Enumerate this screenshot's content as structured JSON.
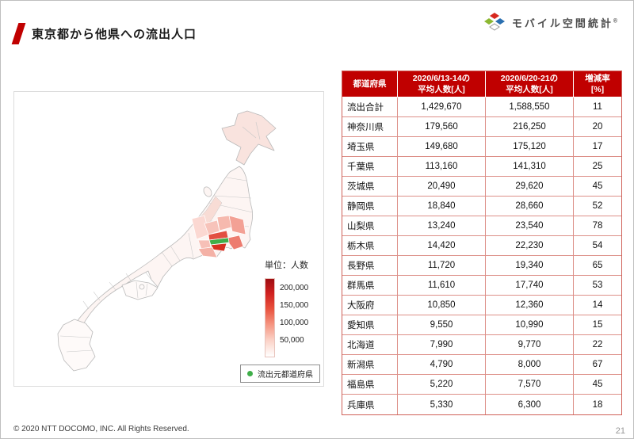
{
  "slide": {
    "title": "東京都から他県への流出人口",
    "footer": "© 2020 NTT DOCOMO, INC. All Rights Reserved.",
    "page_number": "21"
  },
  "logo": {
    "text": "モバイル空間統計",
    "registered": "®"
  },
  "map": {
    "legend_title": "単位：人数",
    "legend_ticks": [
      "200,000",
      "150,000",
      "100,000",
      "50,000"
    ],
    "source_legend_label": "流出元都道府県",
    "source_color": "#3fae49"
  },
  "table": {
    "headers": [
      "都道府県",
      "2020/6/13-14の\n平均人数[人]",
      "2020/6/20-21の\n平均人数[人]",
      "増減率\n[%]"
    ],
    "rows": [
      [
        "流出合計",
        "1,429,670",
        "1,588,550",
        "11"
      ],
      [
        "神奈川県",
        "179,560",
        "216,250",
        "20"
      ],
      [
        "埼玉県",
        "149,680",
        "175,120",
        "17"
      ],
      [
        "千葉県",
        "113,160",
        "141,310",
        "25"
      ],
      [
        "茨城県",
        "20,490",
        "29,620",
        "45"
      ],
      [
        "静岡県",
        "18,840",
        "28,660",
        "52"
      ],
      [
        "山梨県",
        "13,240",
        "23,540",
        "78"
      ],
      [
        "栃木県",
        "14,420",
        "22,230",
        "54"
      ],
      [
        "長野県",
        "11,720",
        "19,340",
        "65"
      ],
      [
        "群馬県",
        "11,610",
        "17,740",
        "53"
      ],
      [
        "大阪府",
        "10,850",
        "12,360",
        "14"
      ],
      [
        "愛知県",
        "9,550",
        "10,990",
        "15"
      ],
      [
        "北海道",
        "7,990",
        "9,770",
        "22"
      ],
      [
        "新潟県",
        "4,790",
        "8,000",
        "67"
      ],
      [
        "福島県",
        "5,220",
        "7,570",
        "45"
      ],
      [
        "兵庫県",
        "5,330",
        "6,300",
        "18"
      ]
    ]
  },
  "chart_data": {
    "type": "table",
    "title": "東京都から他県への流出人口",
    "columns": [
      "都道府県",
      "2020/6/13-14の平均人数[人]",
      "2020/6/20-21の平均人数[人]",
      "増減率[%]"
    ],
    "rows": [
      [
        "流出合計",
        1429670,
        1588550,
        11
      ],
      [
        "神奈川県",
        179560,
        216250,
        20
      ],
      [
        "埼玉県",
        149680,
        175120,
        17
      ],
      [
        "千葉県",
        113160,
        141310,
        25
      ],
      [
        "茨城県",
        20490,
        29620,
        45
      ],
      [
        "静岡県",
        18840,
        28660,
        52
      ],
      [
        "山梨県",
        13240,
        23540,
        78
      ],
      [
        "栃木県",
        14420,
        22230,
        54
      ],
      [
        "長野県",
        11720,
        19340,
        65
      ],
      [
        "群馬県",
        11610,
        17740,
        53
      ],
      [
        "大阪府",
        10850,
        12360,
        14
      ],
      [
        "愛知県",
        9550,
        10990,
        15
      ],
      [
        "北海道",
        7990,
        9770,
        22
      ],
      [
        "新潟県",
        4790,
        8000,
        67
      ],
      [
        "福島県",
        5220,
        7570,
        45
      ],
      [
        "兵庫県",
        5330,
        6300,
        18
      ]
    ],
    "map_legend": {
      "title": "単位：人数",
      "unit": "人",
      "ticks": [
        200000,
        150000,
        100000,
        50000
      ]
    }
  },
  "colors": {
    "accent_red": "#c00000",
    "table_header_bg": "#c00000",
    "source_green": "#3fae49"
  }
}
